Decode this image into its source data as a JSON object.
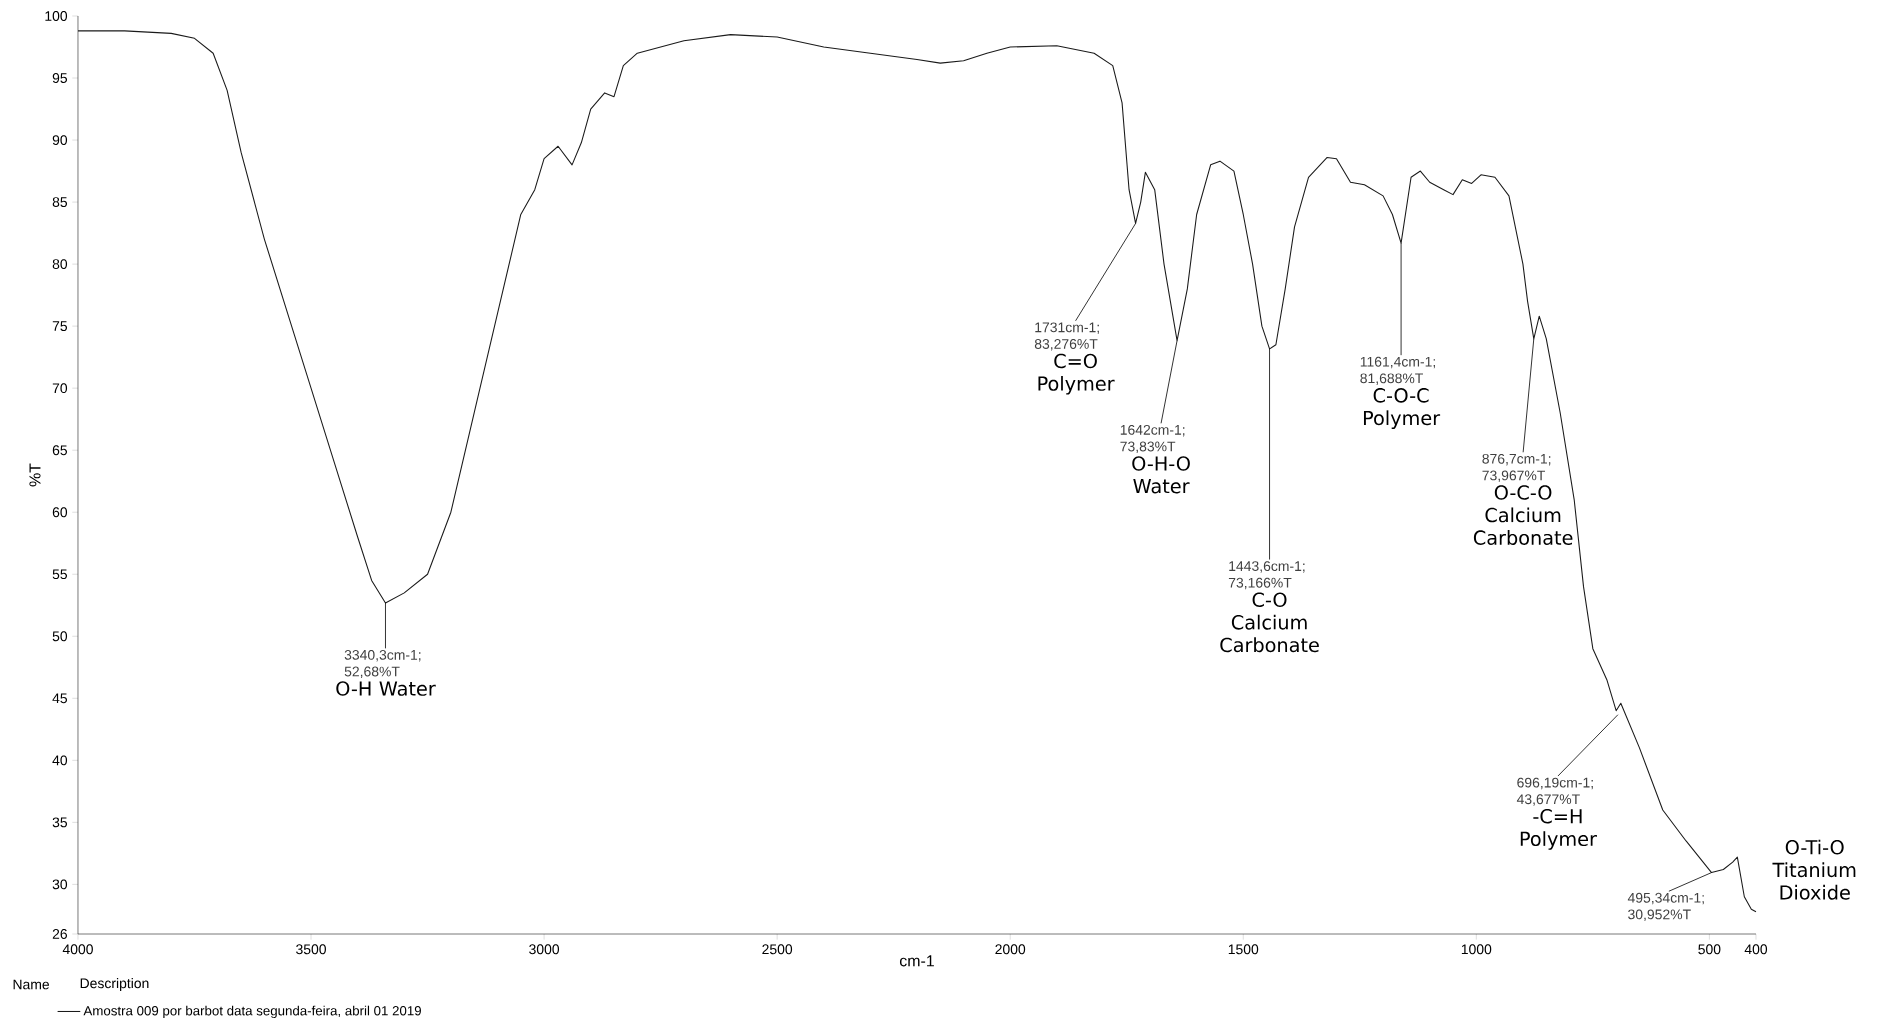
{
  "chart_data": {
    "type": "line",
    "xlabel": "cm-1",
    "ylabel": "%T",
    "xlim": [
      4000,
      400
    ],
    "ylim": [
      26,
      100
    ],
    "xticks": [
      4000,
      3500,
      3000,
      2500,
      2000,
      1500,
      1000,
      500,
      400
    ],
    "yticks": [
      26,
      30,
      35,
      40,
      45,
      50,
      55,
      60,
      65,
      70,
      75,
      80,
      85,
      90,
      95,
      100
    ],
    "legend": "bottom",
    "grid": false,
    "marker": "none",
    "line_style": "solid",
    "x": [
      4000,
      3900,
      3800,
      3750,
      3710,
      3680,
      3650,
      3600,
      3550,
      3500,
      3450,
      3400,
      3370,
      3340.3,
      3300,
      3250,
      3200,
      3150,
      3100,
      3050,
      3020,
      3000,
      2970,
      2940,
      2920,
      2900,
      2870,
      2850,
      2830,
      2800,
      2700,
      2600,
      2500,
      2400,
      2300,
      2200,
      2150,
      2100,
      2050,
      2000,
      1900,
      1820,
      1780,
      1760,
      1745,
      1731,
      1720,
      1710,
      1690,
      1670,
      1642,
      1620,
      1600,
      1570,
      1550,
      1520,
      1500,
      1480,
      1460,
      1443.6,
      1430,
      1410,
      1390,
      1360,
      1320,
      1300,
      1270,
      1240,
      1200,
      1180,
      1161.4,
      1140,
      1120,
      1100,
      1070,
      1050,
      1030,
      1010,
      990,
      960,
      930,
      900,
      890,
      876.7,
      865,
      850,
      820,
      790,
      770,
      750,
      720,
      700,
      690,
      650,
      600,
      550,
      495.34,
      470,
      450,
      440,
      425,
      410,
      400
    ],
    "series": [
      {
        "name": "Amostra 009 por barbot data segunda-feira, abril 01 2019",
        "color": "#1a1a1a",
        "values": [
          98.8,
          98.8,
          98.6,
          98.2,
          97,
          94,
          89,
          82,
          76,
          70,
          64,
          58,
          54.5,
          52.68,
          53.5,
          55,
          60,
          68,
          76,
          84,
          86,
          88.5,
          89.5,
          88,
          89.8,
          92.5,
          93.8,
          93.5,
          96,
          97,
          98,
          98.5,
          98.3,
          97.5,
          97,
          96.5,
          96.2,
          96.4,
          97,
          97.5,
          97.6,
          97,
          96,
          93,
          86,
          83.276,
          85,
          87.4,
          86,
          80,
          73.83,
          78,
          84,
          88,
          88.3,
          87.5,
          84,
          80,
          75,
          73.166,
          73.5,
          78,
          83,
          87,
          88.6,
          88.5,
          86.6,
          86.4,
          85.5,
          84,
          81.688,
          87,
          87.5,
          86.6,
          86,
          85.6,
          86.8,
          86.5,
          87.2,
          87,
          85.5,
          80,
          77,
          73.967,
          75.8,
          74,
          68,
          61,
          54,
          49,
          46.5,
          44,
          44.6,
          41,
          36,
          33.5,
          30.952,
          31.2,
          31.8,
          32.2,
          29,
          28,
          27.8
        ]
      }
    ],
    "annotations": [
      {
        "text": "3340,3cm-1; 52,68%T",
        "x": 3340.3,
        "y": 52.68
      },
      {
        "text": "1731cm-1; 83,276%T",
        "x": 1731,
        "y": 83.276
      },
      {
        "text": "1642cm-1; 73,83%T",
        "x": 1642,
        "y": 73.83
      },
      {
        "text": "1443,6cm-1; 73,166%T",
        "x": 1443.6,
        "y": 73.166
      },
      {
        "text": "1161,4cm-1; 81,688%T",
        "x": 1161.4,
        "y": 81.688
      },
      {
        "text": "876,7cm-1; 73,967%T",
        "x": 876.7,
        "y": 73.967
      },
      {
        "text": "696,19cm-1; 43,677%T",
        "x": 696.19,
        "y": 43.677
      },
      {
        "text": "495,34cm-1; 30,952%T",
        "x": 495.34,
        "y": 30.952
      },
      "O-H Water",
      "C=O Polymer",
      "O-H-O Water",
      "C-O Calcium Carbonate",
      "C-O-C Polymer",
      "O-C-O Calcium Carbonate",
      "-C=H Polymer",
      "O-Ti-O Titanium Dioxide",
      "Name",
      "Description"
    ]
  }
}
